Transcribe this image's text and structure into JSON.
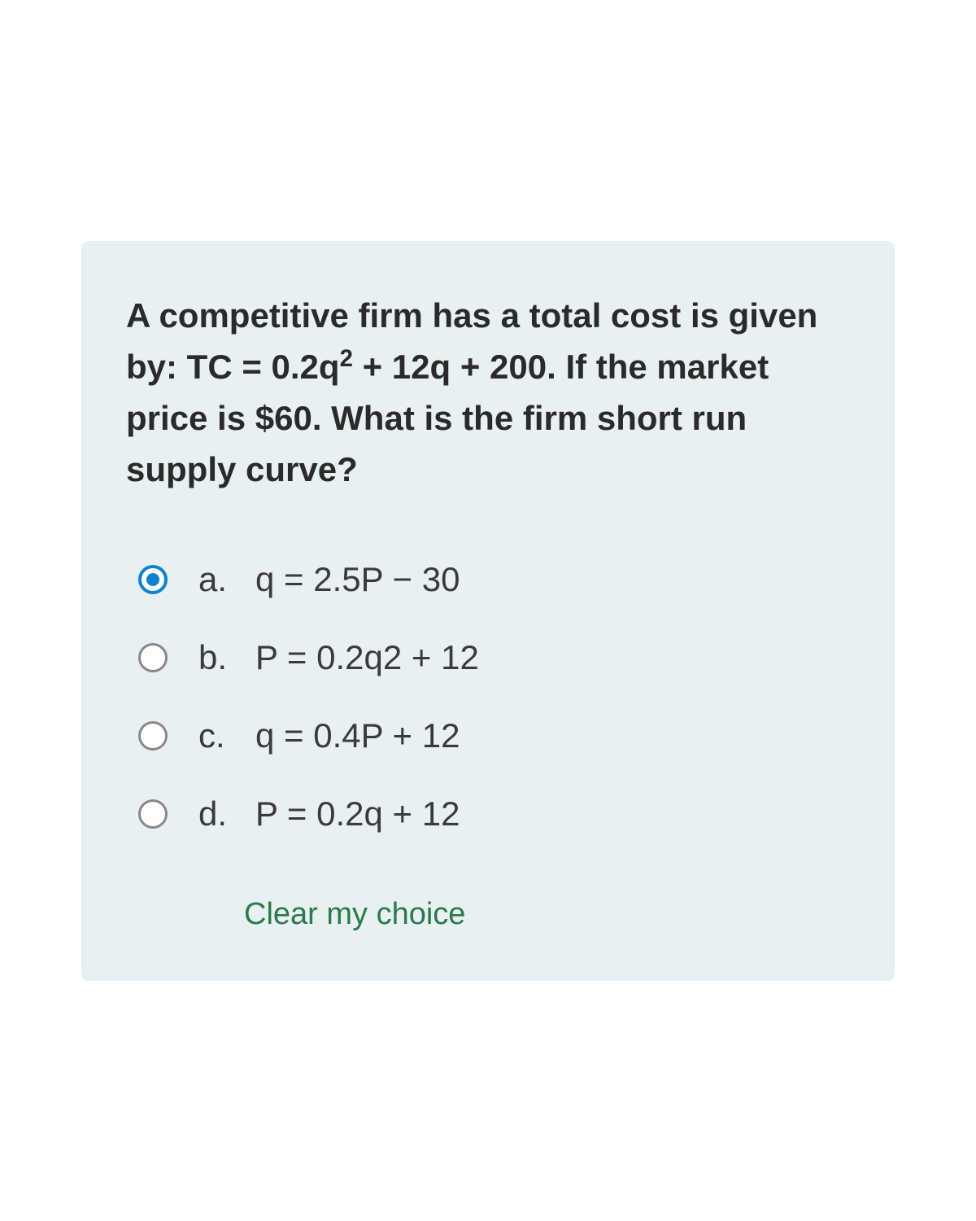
{
  "question": {
    "text_parts": [
      "A competitive firm has a total cost is given by: TC = 0.2q",
      "2",
      " + 12q + 200. If the market price is $60. What is the firm short run supply curve?"
    ]
  },
  "options": [
    {
      "letter": "a.",
      "text": "q = 2.5P − 30",
      "selected": true
    },
    {
      "letter": "b.",
      "text": "P = 0.2q2 + 12",
      "selected": false
    },
    {
      "letter": "c.",
      "text": "q = 0.4P + 12",
      "selected": false
    },
    {
      "letter": "d.",
      "text": "P = 0.2q + 12",
      "selected": false
    }
  ],
  "clear_label": "Clear my choice",
  "colors": {
    "card_bg": "#e9f0f3",
    "text": "#2a2a2a",
    "option_text": "#3a3a3a",
    "radio_border": "#888888",
    "radio_selected": "#0f82d0",
    "clear_link": "#2a7a4a"
  }
}
